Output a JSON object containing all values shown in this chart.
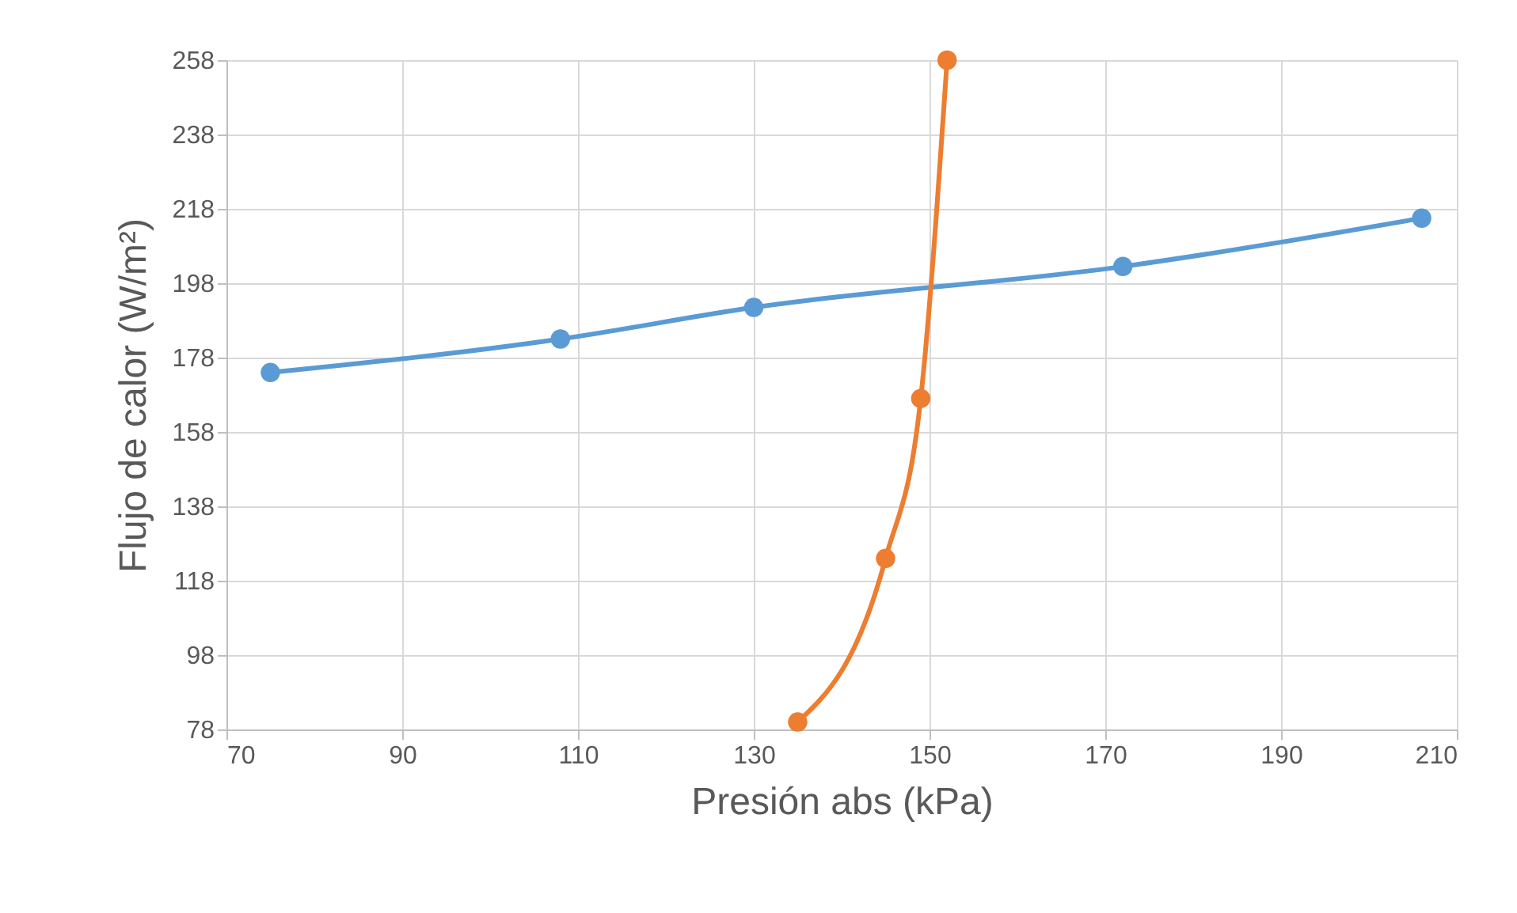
{
  "chart_data": {
    "type": "line",
    "xlabel": "Presión abs (kPa)",
    "ylabel": "Flujo de calor (W/m²)",
    "xlim": [
      70,
      210
    ],
    "xticks": [
      70,
      90,
      110,
      130,
      150,
      170,
      190,
      210
    ],
    "ylim": [
      78,
      258
    ],
    "yticks": [
      78,
      98,
      118,
      138,
      158,
      178,
      198,
      218,
      238,
      258
    ],
    "grid": true,
    "legend": false,
    "marker": "circle",
    "line_style": "solid",
    "series": [
      {
        "color": "#5b9bd5",
        "x": [
          75,
          108,
          130,
          172,
          206
        ],
        "values": [
          174,
          183,
          191.5,
          202.5,
          215.5
        ]
      },
      {
        "color": "#ed7d31",
        "x": [
          135,
          145,
          149,
          152
        ],
        "values": [
          80,
          124,
          167,
          258
        ]
      }
    ]
  }
}
